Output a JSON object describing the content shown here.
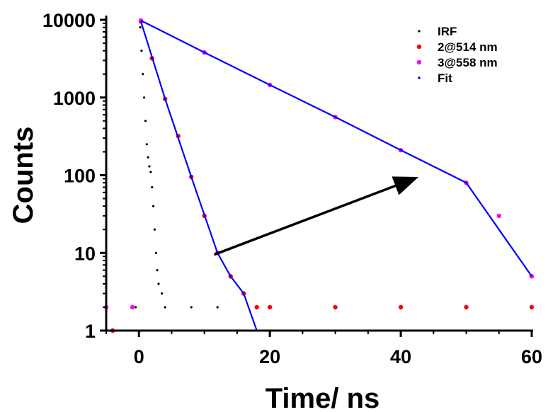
{
  "chart_data": {
    "type": "scatter",
    "xlabel": "Time/ ns",
    "ylabel": "Counts",
    "xlim": [
      -5,
      60
    ],
    "ylim": [
      1,
      10000
    ],
    "yscale": "log",
    "xticks": [
      0,
      20,
      40,
      60
    ],
    "xtick_labels": [
      "0",
      "20",
      "40",
      "60"
    ],
    "yticks": [
      1,
      10,
      100,
      1000,
      10000
    ],
    "ytick_labels": [
      "1",
      "10",
      "100",
      "1000",
      "10000"
    ],
    "grid": false,
    "legend_position": "top-right",
    "series": [
      {
        "name": "IRF",
        "color": "#000000",
        "marker": "dot-small",
        "points": [
          [
            -0.5,
            2
          ],
          [
            0.2,
            8000
          ],
          [
            0.4,
            4000
          ],
          [
            0.6,
            2000
          ],
          [
            0.8,
            1000
          ],
          [
            1.0,
            500
          ],
          [
            1.2,
            250
          ],
          [
            1.4,
            170
          ],
          [
            1.6,
            130
          ],
          [
            1.8,
            110
          ],
          [
            2.0,
            70
          ],
          [
            2.2,
            40
          ],
          [
            2.4,
            20
          ],
          [
            2.6,
            10
          ],
          [
            2.8,
            6
          ],
          [
            3.0,
            4
          ],
          [
            3.5,
            3
          ],
          [
            4.0,
            2
          ],
          [
            8.0,
            2
          ],
          [
            12.0,
            2
          ]
        ]
      },
      {
        "name": "2@514 nm",
        "color": "#ff0000",
        "marker": "dot",
        "points": [
          [
            -4,
            1
          ],
          [
            0.3,
            9500
          ],
          [
            2,
            3200
          ],
          [
            4,
            960
          ],
          [
            6,
            320
          ],
          [
            8,
            95
          ],
          [
            10,
            30
          ],
          [
            12,
            10
          ],
          [
            14,
            5
          ],
          [
            16,
            3
          ],
          [
            18,
            2
          ],
          [
            20,
            2
          ],
          [
            30,
            2
          ],
          [
            40,
            2
          ],
          [
            50,
            2
          ],
          [
            60,
            2
          ]
        ]
      },
      {
        "name": "3@558 nm",
        "color": "#ff00ff",
        "marker": "dot",
        "points": [
          [
            -5,
            2
          ],
          [
            -1,
            2
          ],
          [
            0.3,
            9800
          ],
          [
            10,
            3800
          ],
          [
            20,
            1450
          ],
          [
            30,
            560
          ],
          [
            40,
            210
          ],
          [
            50,
            80
          ],
          [
            55,
            30
          ],
          [
            60,
            5
          ]
        ]
      },
      {
        "name": "Fit",
        "color": "#0000ff",
        "marker": "line",
        "points": [
          [
            0.3,
            9500
          ],
          [
            4,
            960
          ],
          [
            8,
            95
          ],
          [
            12,
            10
          ],
          [
            14,
            5
          ],
          [
            16,
            3
          ],
          [
            18,
            1
          ]
        ]
      },
      {
        "name": "Fit",
        "color": "#0000ff",
        "marker": "line",
        "points": [
          [
            0.3,
            9800
          ],
          [
            10,
            3800
          ],
          [
            20,
            1450
          ],
          [
            30,
            560
          ],
          [
            40,
            210
          ],
          [
            50,
            80
          ],
          [
            60,
            5
          ]
        ]
      }
    ],
    "annotations": [
      {
        "type": "arrow",
        "from": [
          11.5,
          9.5
        ],
        "to": [
          42,
          90
        ],
        "color": "#000000"
      }
    ]
  }
}
